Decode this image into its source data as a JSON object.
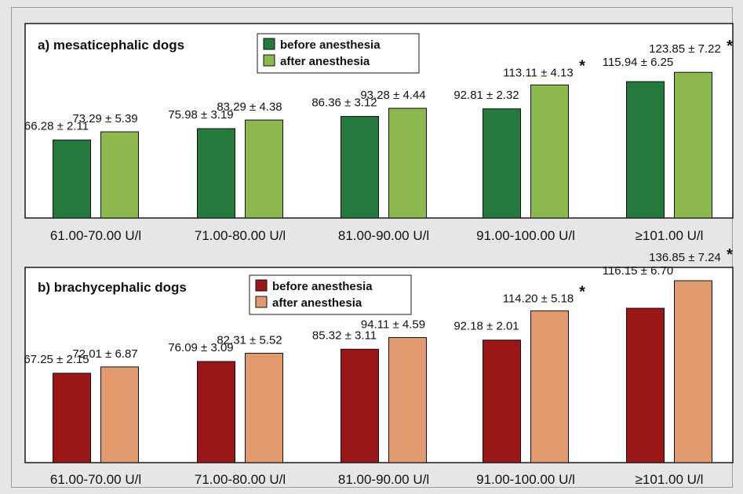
{
  "chart_data": [
    {
      "type": "bar",
      "title": "a) mesaticephalic dogs",
      "categories": [
        "61.00-70.00 U/l",
        "71.00-80.00 U/l",
        "81.00-90.00 U/l",
        "91.00-100.00 U/l",
        "≥101.00 U/l"
      ],
      "series": [
        {
          "name": "before anesthesia",
          "color": "#247a3d",
          "values": [
            66.28,
            75.98,
            86.36,
            92.81,
            115.94
          ],
          "labels": [
            "66.28 ± 2.11",
            "75.98 ± 3.19",
            "86.36 ± 3.12",
            "92.81 ± 2.32",
            "115.94 ± 6.25"
          ]
        },
        {
          "name": "after anesthesia",
          "color": "#8cb84e",
          "values": [
            73.29,
            83.29,
            93.28,
            113.11,
            123.85
          ],
          "labels": [
            "73.29 ± 5.39",
            "83.29 ± 4.38",
            "93.28 ± 4.44",
            "113.11 ± 4.13",
            "123.85 ± 7.22"
          ]
        }
      ],
      "significance": [
        "",
        "",
        "",
        "*",
        "*"
      ],
      "ylim": [
        0,
        130
      ],
      "legend_position": "top-center"
    },
    {
      "type": "bar",
      "title": "b) brachycephalic dogs",
      "categories": [
        "61.00-70.00 U/l",
        "71.00-80.00 U/l",
        "81.00-90.00 U/l",
        "91.00-100.00 U/l",
        "≥101.00 U/l"
      ],
      "series": [
        {
          "name": "before anesthesia",
          "color": "#9b1616",
          "values": [
            67.25,
            76.09,
            85.32,
            92.18,
            116.15
          ],
          "labels": [
            "67.25 ± 2.15",
            "76.09 ± 3.09",
            "85.32 ± 3.11",
            "92.18 ± 2.01",
            "116.15 ± 6.70"
          ]
        },
        {
          "name": "after anesthesia",
          "color": "#e09a6e",
          "values": [
            72.01,
            82.31,
            94.11,
            114.2,
            136.85
          ],
          "labels": [
            "72.01 ± 6.87",
            "82.31 ± 5.52",
            "94.11 ± 4.59",
            "114.20 ± 5.18",
            "136.85 ± 7.24"
          ]
        }
      ],
      "significance": [
        "",
        "",
        "",
        "*",
        "*"
      ],
      "ylim": [
        0,
        140
      ],
      "legend_position": "top-center"
    }
  ]
}
